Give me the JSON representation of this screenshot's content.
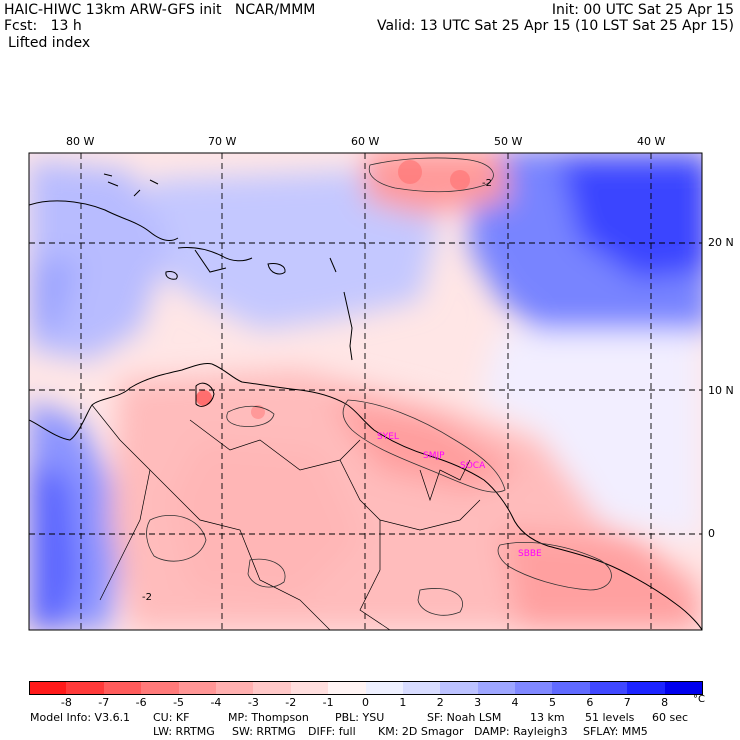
{
  "header": {
    "title_left": "HAIC-HIWC 13km ARW-GFS init   NCAR/MMM",
    "init": "Init: 00 UTC Sat 25 Apr 15",
    "fcst": "Fcst:   13 h",
    "valid": "Valid: 13 UTC Sat 25 Apr 15 (10 LST Sat 25 Apr 15)",
    "field": "Lifted index"
  },
  "map": {
    "lon_labels": [
      "80 W",
      "70 W",
      "60 W",
      "50 W",
      "40 W"
    ],
    "lat_labels": [
      "20 N",
      "10 N",
      "0"
    ],
    "stations": [
      "SYEL",
      "SMJP",
      "SOCA",
      "SBBE"
    ],
    "contour_labels": [
      "-2",
      "-2"
    ],
    "colors": {
      "station": "#ff00ff"
    }
  },
  "colorbar": {
    "ticks": [
      "-8",
      "-7",
      "-6",
      "-5",
      "-4",
      "-3",
      "-2",
      "-1",
      "0",
      "1",
      "2",
      "3",
      "4",
      "5",
      "6",
      "7",
      "8"
    ],
    "unit": "°C",
    "colors": [
      "#ff1a1a",
      "#ff3a3a",
      "#ff5c5c",
      "#ff7a7a",
      "#ff9696",
      "#ffb0b0",
      "#ffc8c8",
      "#ffdede",
      "#fff4f4",
      "#eef0ff",
      "#d8dcff",
      "#bcc2ff",
      "#9ea6ff",
      "#8088ff",
      "#606aff",
      "#4048ff",
      "#1c24ff",
      "#0000ee"
    ]
  },
  "footer": {
    "line1": [
      {
        "k": "model",
        "t": "Model Info: V3.6.1"
      },
      {
        "k": "cu",
        "t": "CU: KF"
      },
      {
        "k": "mp",
        "t": "MP: Thompson"
      },
      {
        "k": "pbl",
        "t": "PBL: YSU"
      },
      {
        "k": "sf",
        "t": "SF: Noah LSM"
      },
      {
        "k": "res",
        "t": "13 km"
      },
      {
        "k": "lev",
        "t": "51 levels"
      },
      {
        "k": "dt",
        "t": "60 sec"
      }
    ],
    "line2": [
      {
        "k": "lw",
        "t": "LW: RRTMG"
      },
      {
        "k": "sw",
        "t": "SW: RRTMG"
      },
      {
        "k": "diff",
        "t": "DIFF: full"
      },
      {
        "k": "km",
        "t": "KM: 2D Smagor"
      },
      {
        "k": "damp",
        "t": "DAMP: Rayleigh3"
      },
      {
        "k": "sflay",
        "t": "SFLAY: MM5"
      }
    ]
  }
}
